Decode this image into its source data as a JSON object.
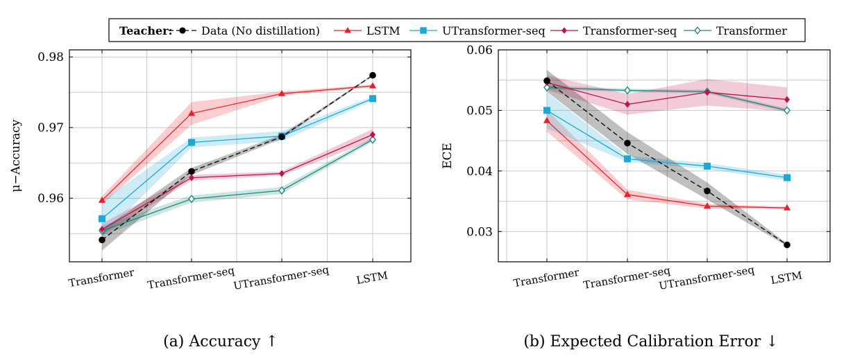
{
  "legend": {
    "title": "Teacher:",
    "entries": [
      {
        "name": "Data (No distillation)",
        "color": "#000000",
        "marker": "circle",
        "dashed": true
      },
      {
        "name": "LSTM",
        "color": "#e8202a",
        "marker": "triangle",
        "dashed": false
      },
      {
        "name": "UTransformer-seq",
        "color": "#1ba8d8",
        "marker": "square",
        "dashed": false
      },
      {
        "name": "Transformer-seq",
        "color": "#c0104e",
        "marker": "diamond",
        "dashed": false
      },
      {
        "name": "Transformer",
        "color": "#1a8a7a",
        "marker": "diamond-open",
        "dashed": false
      }
    ]
  },
  "chart_data": [
    {
      "type": "line",
      "caption": "(a) Accuracy ↑",
      "ylabel": "μ−Accuracy",
      "xlabel": "",
      "categories": [
        "Transformer",
        "Transformer-seq",
        "UTransformer-seq",
        "LSTM"
      ],
      "ylim": [
        0.951,
        0.981
      ],
      "yticks": [
        0.96,
        0.97,
        0.98
      ],
      "ytick_labels": [
        "0.96",
        "0.97",
        "0.98"
      ],
      "grid": true,
      "series": [
        {
          "name": "Data (No distillation)",
          "values": [
            0.9541,
            0.9638,
            0.9687,
            0.9774
          ],
          "band": [
            0.0015,
            0.0005,
            0.0003,
            0.0001
          ]
        },
        {
          "name": "LSTM",
          "values": [
            0.9597,
            0.972,
            0.9748,
            0.9759
          ],
          "band": [
            0.0006,
            0.0016,
            0.0003,
            0.0002
          ]
        },
        {
          "name": "UTransformer-seq",
          "values": [
            0.9571,
            0.9679,
            0.9688,
            0.9741
          ],
          "band": [
            0.0025,
            0.0007,
            0.0007,
            0.0003
          ]
        },
        {
          "name": "Transformer-seq",
          "values": [
            0.9556,
            0.9629,
            0.9635,
            0.969
          ],
          "band": [
            0.0008,
            0.0004,
            0.0003,
            0.0008
          ]
        },
        {
          "name": "Transformer",
          "values": [
            0.9554,
            0.9599,
            0.9611,
            0.9683
          ],
          "band": [
            0.0007,
            0.0005,
            0.0005,
            0.0003
          ]
        }
      ]
    },
    {
      "type": "line",
      "caption": "(b) Expected Calibration Error ↓",
      "ylabel": "ECE",
      "xlabel": "",
      "categories": [
        "Transformer",
        "Transformer-seq",
        "UTransformer-seq",
        "LSTM"
      ],
      "ylim": [
        0.025,
        0.06
      ],
      "yticks": [
        0.03,
        0.04,
        0.05,
        0.06
      ],
      "ytick_labels": [
        "0.03",
        "0.04",
        "0.05",
        "0.06"
      ],
      "grid": true,
      "series": [
        {
          "name": "Data (No distillation)",
          "values": [
            0.0549,
            0.0446,
            0.0367,
            0.0278
          ],
          "band": [
            0.0018,
            0.0018,
            0.0014,
            0.0002
          ]
        },
        {
          "name": "LSTM",
          "values": [
            0.0483,
            0.0361,
            0.0342,
            0.0339
          ],
          "band": [
            0.0018,
            0.0008,
            0.0004,
            0.0002
          ]
        },
        {
          "name": "UTransformer-seq",
          "values": [
            0.05,
            0.042,
            0.0408,
            0.0389
          ],
          "band": [
            0.003,
            0.0005,
            0.0005,
            0.0005
          ]
        },
        {
          "name": "Transformer-seq",
          "values": [
            0.0546,
            0.051,
            0.053,
            0.0518
          ],
          "band": [
            0.0012,
            0.0017,
            0.0022,
            0.002
          ]
        },
        {
          "name": "Transformer",
          "values": [
            0.0538,
            0.0533,
            0.0531,
            0.05
          ],
          "band": [
            0.0003,
            0.0003,
            0.0003,
            0.0003
          ]
        }
      ]
    }
  ]
}
